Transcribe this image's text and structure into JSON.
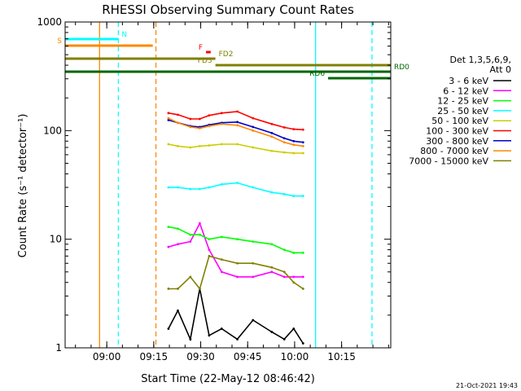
{
  "chart_data": {
    "type": "line",
    "title": "RHESSI Observing Summary Count Rates",
    "xlabel": "Start Time (22-May-12 08:46:42)",
    "ylabel": "Count Rate (s⁻¹ detector⁻¹)",
    "y_scale": "log",
    "ylim": [
      1,
      1000
    ],
    "xlim_minutes": [
      0,
      104
    ],
    "x_ticks": [
      {
        "t": 13.3,
        "label": "09:00"
      },
      {
        "t": 28.3,
        "label": "09:15"
      },
      {
        "t": 43.3,
        "label": "09:30"
      },
      {
        "t": 58.3,
        "label": "09:45"
      },
      {
        "t": 73.3,
        "label": "10:00"
      },
      {
        "t": 88.3,
        "label": "10:15"
      }
    ],
    "y_ticks": [
      {
        "v": 1,
        "label": "1"
      },
      {
        "v": 10,
        "label": "10"
      },
      {
        "v": 100,
        "label": "100"
      },
      {
        "v": 1000,
        "label": "1000"
      }
    ],
    "legend_header": [
      "Det 1,3,5,6,9,",
      "Att 0"
    ],
    "legend_position": "right",
    "series": [
      {
        "name": "3 - 6 keV",
        "color": "#000000",
        "times": [
          33,
          36,
          40,
          43,
          46,
          50,
          55,
          60,
          66,
          70,
          73,
          76
        ],
        "values": [
          1.5,
          2.2,
          1.2,
          3.5,
          1.3,
          1.5,
          1.2,
          1.8,
          1.4,
          1.2,
          1.5,
          1.1
        ]
      },
      {
        "name": "6 - 12 keV",
        "color": "#ff00ff",
        "times": [
          33,
          36,
          40,
          43,
          46,
          50,
          55,
          60,
          66,
          70,
          73,
          76
        ],
        "values": [
          8.5,
          9,
          9.5,
          14,
          8,
          5,
          4.5,
          4.5,
          5,
          4.5,
          4.5,
          4.5
        ]
      },
      {
        "name": "12 - 25 keV",
        "color": "#00ff00",
        "times": [
          33,
          36,
          40,
          43,
          46,
          50,
          55,
          60,
          66,
          70,
          73,
          76
        ],
        "values": [
          13,
          12.5,
          11,
          11,
          10,
          10.5,
          10,
          9.5,
          9,
          8,
          7.5,
          7.5
        ]
      },
      {
        "name": "25 - 50 keV",
        "color": "#00ffff",
        "times": [
          33,
          36,
          40,
          43,
          46,
          50,
          55,
          60,
          66,
          70,
          73,
          76
        ],
        "values": [
          30,
          30,
          29,
          29,
          30,
          32,
          33,
          30,
          27,
          26,
          25,
          25
        ]
      },
      {
        "name": "50 - 100 keV",
        "color": "#cccc00",
        "times": [
          33,
          36,
          40,
          43,
          46,
          50,
          55,
          60,
          66,
          70,
          73,
          76
        ],
        "values": [
          75,
          72,
          70,
          72,
          73,
          75,
          75,
          70,
          65,
          63,
          62,
          62
        ]
      },
      {
        "name": "100 - 300 keV",
        "color": "#ff0000",
        "times": [
          33,
          36,
          40,
          43,
          46,
          50,
          55,
          60,
          66,
          70,
          73,
          76
        ],
        "values": [
          145,
          140,
          128,
          128,
          138,
          145,
          150,
          130,
          115,
          107,
          103,
          102
        ]
      },
      {
        "name": "300 - 800 keV",
        "color": "#0000cc",
        "times": [
          33,
          36,
          40,
          43,
          46,
          50,
          55,
          60,
          66,
          70,
          73,
          76
        ],
        "values": [
          125,
          118,
          110,
          108,
          113,
          118,
          120,
          108,
          95,
          85,
          80,
          78
        ]
      },
      {
        "name": "800 - 7000 keV",
        "color": "#ff8800",
        "times": [
          33,
          36,
          40,
          43,
          46,
          50,
          55,
          60,
          66,
          70,
          73,
          76
        ],
        "values": [
          130,
          118,
          108,
          105,
          110,
          115,
          112,
          100,
          88,
          78,
          74,
          72
        ]
      },
      {
        "name": "7000 - 15000 keV",
        "color": "#808000",
        "times": [
          33,
          36,
          40,
          43,
          46,
          50,
          55,
          60,
          66,
          70,
          73,
          76
        ],
        "values": [
          3.5,
          3.5,
          4.5,
          3.5,
          7,
          6.5,
          6,
          6,
          5.5,
          5,
          4,
          3.5
        ]
      }
    ],
    "flag_bars": [
      {
        "label": "S",
        "color": "#ff8800",
        "start": 0,
        "end": 28,
        "level": 1,
        "label_at": "start"
      },
      {
        "label": "N",
        "color": "#00ffff",
        "start": 0,
        "end": 17,
        "level": 0,
        "label_at": "end"
      },
      {
        "label": "F",
        "color": "#ff0000",
        "start": 45,
        "end": 46.5,
        "level": 2,
        "label_at": "start"
      },
      {
        "label": "FD2",
        "color": "#808000",
        "start": 0,
        "end": 48,
        "level": 3,
        "label_at": "end"
      },
      {
        "label": "FD3",
        "color": "#808000",
        "start": 48,
        "end": 104,
        "level": 4,
        "label_at": "start"
      },
      {
        "label": "RD0",
        "color": "#006600",
        "start": 0,
        "end": 104,
        "level": 5,
        "label_at": "end"
      },
      {
        "label": "RD6",
        "color": "#006600",
        "start": 84,
        "end": 104,
        "level": 6,
        "label_at": "start"
      }
    ],
    "vertical_markers": [
      {
        "t": 11,
        "color": "#ff8800",
        "style": "solid"
      },
      {
        "t": 17,
        "color": "#00ffff",
        "style": "dashed"
      },
      {
        "t": 29,
        "color": "#ff8800",
        "style": "dashed"
      },
      {
        "t": 80,
        "color": "#00ffff",
        "style": "solid"
      },
      {
        "t": 98,
        "color": "#00ffff",
        "style": "dashed"
      }
    ],
    "timestamp": "21-Oct-2021 19:43"
  }
}
